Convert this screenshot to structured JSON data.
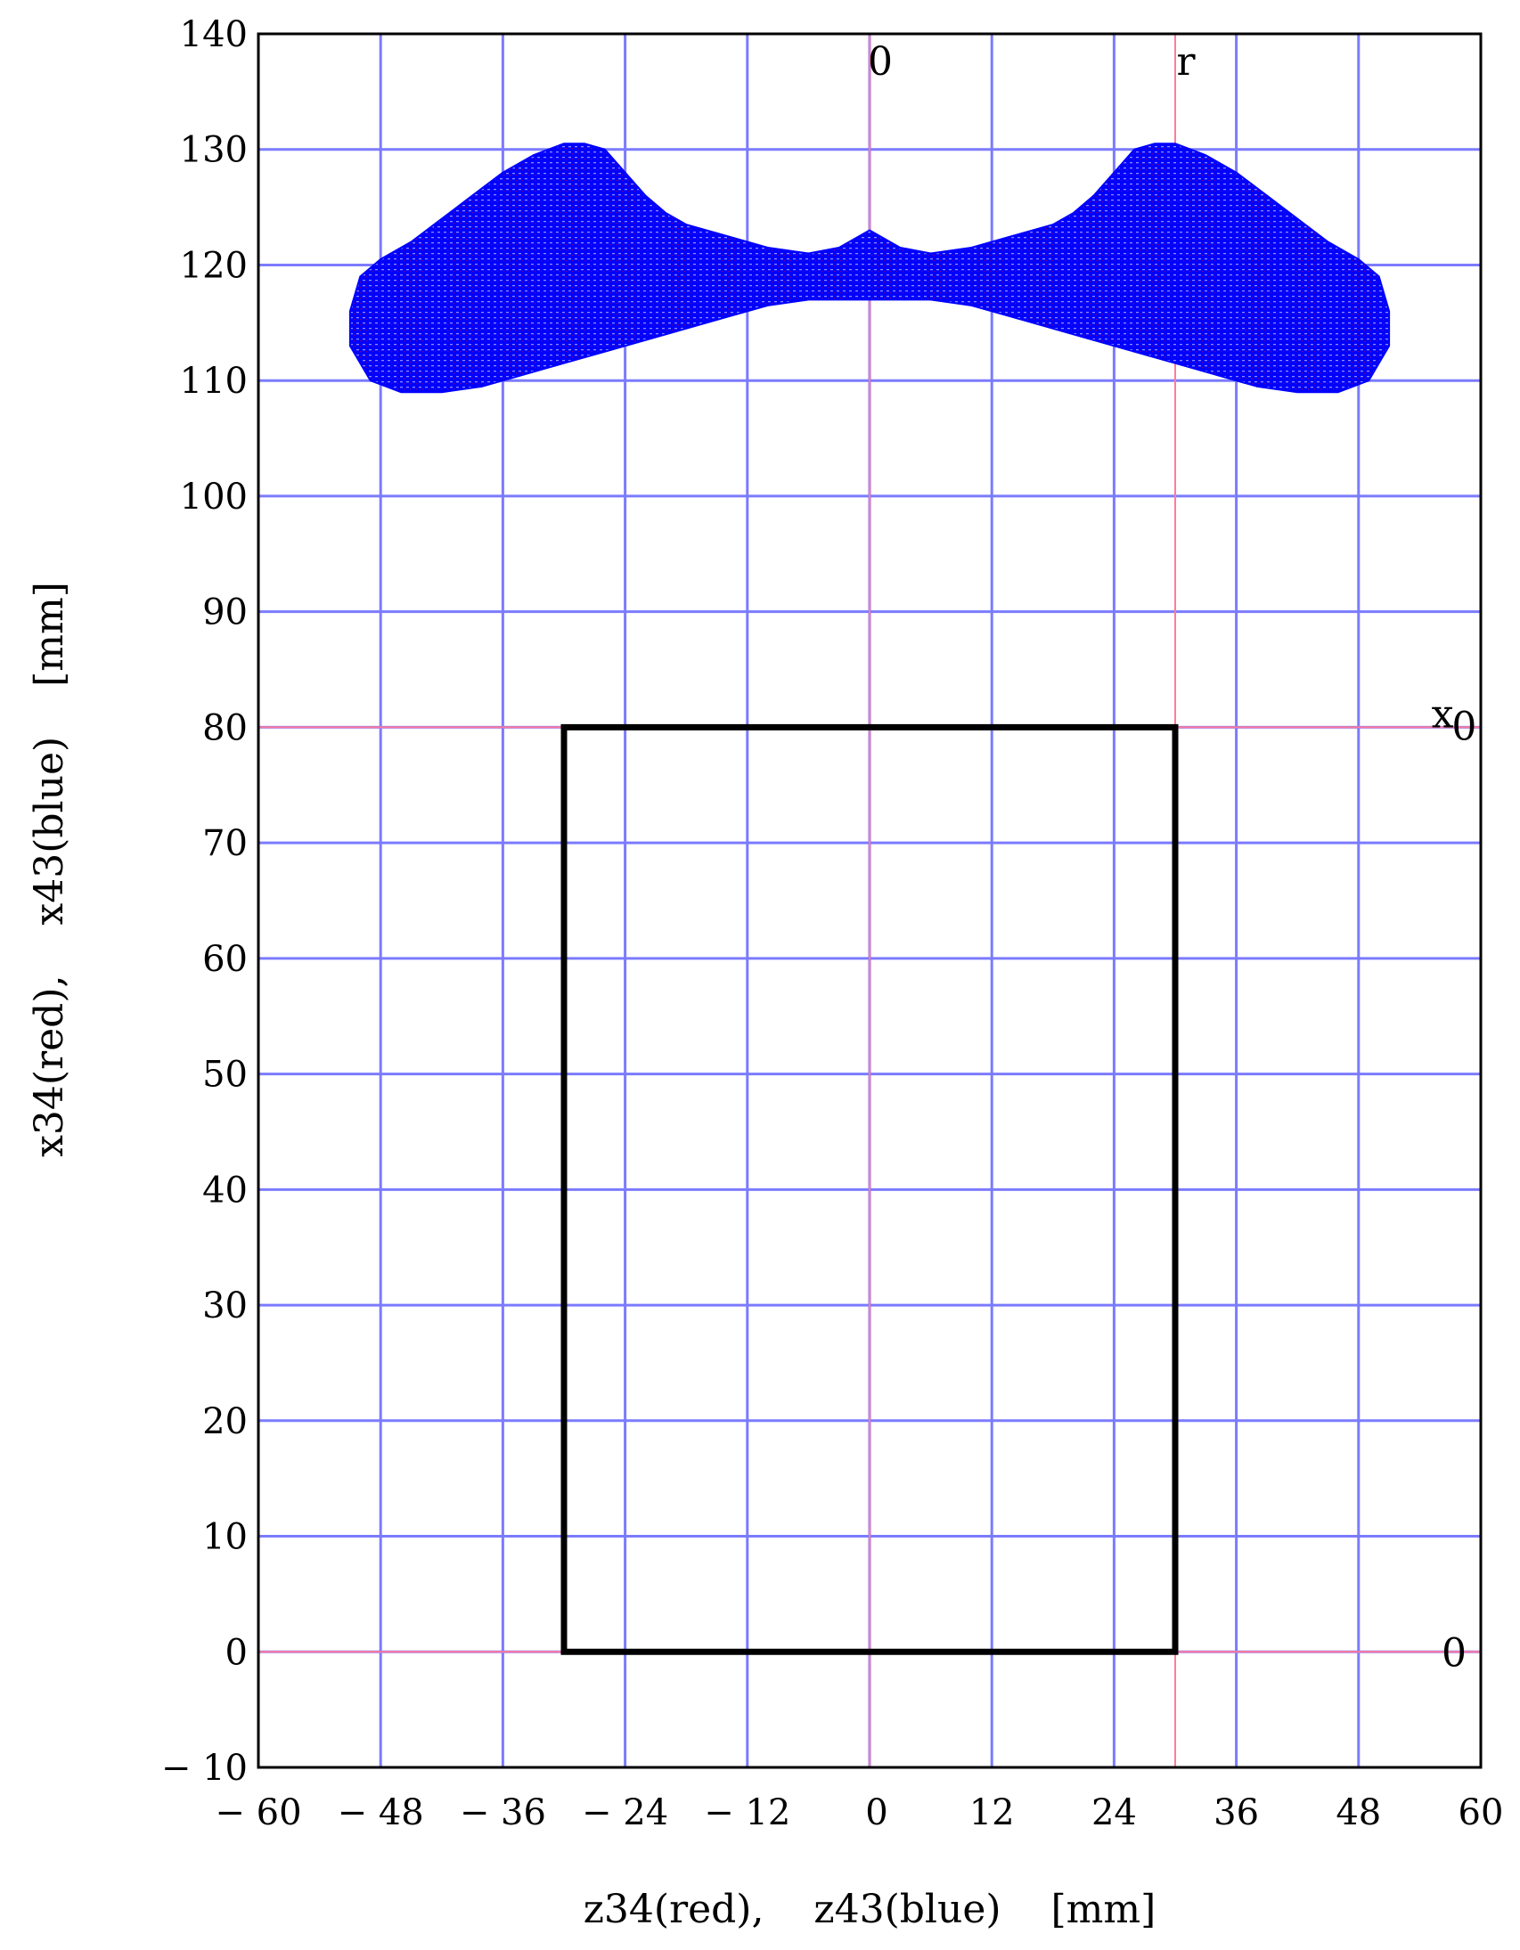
{
  "chart_data": {
    "type": "scatter",
    "title": "",
    "xlabel": "z34(red),    z43(blue)    [mm]",
    "ylabel": "x34(red),    x43(blue)    [mm]",
    "xlim": [
      -60,
      60
    ],
    "ylim": [
      -10,
      140
    ],
    "x_ticks": [
      -60,
      -48,
      -36,
      -24,
      -12,
      0,
      12,
      24,
      36,
      48,
      60
    ],
    "y_ticks": [
      -10,
      0,
      10,
      20,
      30,
      40,
      50,
      60,
      70,
      80,
      90,
      100,
      110,
      120,
      130,
      140
    ],
    "x_tick_labels": [
      "− 60",
      "− 48",
      "− 36",
      "− 24",
      "− 12",
      "0",
      "12",
      "24",
      "36",
      "48",
      "60"
    ],
    "y_tick_labels": [
      "− 10",
      "0",
      "10",
      "20",
      "30",
      "40",
      "50",
      "60",
      "70",
      "80",
      "90",
      "100",
      "110",
      "120",
      "130",
      "140"
    ],
    "grid": true,
    "grid_color": "#7b7bff",
    "reference_color": "#ff7b9c",
    "reference_lines": {
      "vertical": [
        {
          "x": 0,
          "label": "0"
        },
        {
          "x": 30,
          "label": "r"
        }
      ],
      "horizontal": [
        {
          "y": 80,
          "label": "x",
          "label_sub": "0"
        },
        {
          "y": 0,
          "label": "0"
        }
      ]
    },
    "rectangle": {
      "x": [
        -30,
        30
      ],
      "y": [
        0,
        80
      ],
      "color": "#000000"
    },
    "series": [
      {
        "color": "#0000ff",
        "outline_x": [
          -51,
          -49,
          -46,
          -42,
          -38,
          -34,
          -30,
          -26,
          -22,
          -18,
          -14,
          -10,
          -6,
          -3,
          0,
          3,
          6,
          10,
          14,
          18,
          22,
          26,
          30,
          34,
          38,
          42,
          46,
          49,
          51,
          51,
          50,
          48,
          45,
          42,
          39,
          36,
          33,
          30,
          28,
          26,
          24,
          22,
          20,
          18,
          14,
          10,
          6,
          3,
          0,
          -3,
          -6,
          -10,
          -14,
          -18,
          -20,
          -22,
          -24,
          -26,
          -28,
          -30,
          -33,
          -36,
          -39,
          -42,
          -45,
          -48,
          -50,
          -51
        ],
        "outline_y": [
          113,
          110,
          109,
          109,
          109.5,
          110.5,
          111.5,
          112.5,
          113.5,
          114.5,
          115.5,
          116.5,
          117,
          117,
          117,
          117,
          117,
          116.5,
          115.5,
          114.5,
          113.5,
          112.5,
          111.5,
          110.5,
          109.5,
          109,
          109,
          110,
          113,
          116,
          119,
          120.5,
          122,
          124,
          126,
          128,
          129.5,
          130.5,
          130.5,
          130,
          128,
          126,
          124.5,
          123.5,
          122.5,
          121.5,
          121,
          121.5,
          123,
          121.5,
          121,
          121.5,
          122.5,
          123.5,
          124.5,
          126,
          128,
          130,
          130.5,
          130.5,
          129.5,
          128,
          126,
          124,
          122,
          120.5,
          119,
          116
        ]
      }
    ]
  }
}
